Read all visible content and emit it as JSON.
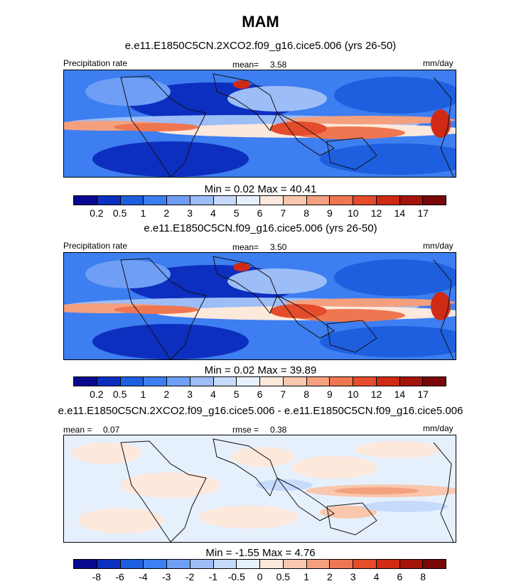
{
  "main_title": "MAM",
  "colors": {
    "scale": [
      "#08088f",
      "#0d2fbf",
      "#1e5fe0",
      "#3d7ef0",
      "#6e9ff5",
      "#9dbdf7",
      "#c6dafb",
      "#e6f0fd",
      "#fde8dc",
      "#f9c7ad",
      "#f4a07f",
      "#ee7752",
      "#e54c2c",
      "#cf2a14",
      "#a6130a",
      "#7a0707"
    ],
    "land_outline": "#111111"
  },
  "chart_data": [
    {
      "type": "heatmap",
      "title": "e.e11.E1850C5CN.2XCO2.f09_g16.cice5.006 (yrs 26-50)",
      "left_label": "Precipitation rate",
      "center_label": "mean=",
      "center_value": "3.58",
      "right_label": "mm/day",
      "min_label": "Min =",
      "min_value": "0.02",
      "max_label": "Max =",
      "max_value": "40.41",
      "colorbar_levels": [
        "0.2",
        "0.5",
        "1",
        "2",
        "3",
        "4",
        "5",
        "6",
        "7",
        "8",
        "9",
        "10",
        "12",
        "14",
        "17"
      ]
    },
    {
      "type": "heatmap",
      "title": "e.e11.E1850C5CN.f09_g16.cice5.006 (yrs 26-50)",
      "left_label": "Precipitation rate",
      "center_label": "mean=",
      "center_value": "3.50",
      "right_label": "mm/day",
      "min_label": "Min =",
      "min_value": "0.02",
      "max_label": "Max =",
      "max_value": "39.89",
      "colorbar_levels": [
        "0.2",
        "0.5",
        "1",
        "2",
        "3",
        "4",
        "5",
        "6",
        "7",
        "8",
        "9",
        "10",
        "12",
        "14",
        "17"
      ]
    },
    {
      "type": "heatmap",
      "title": "e.e11.E1850C5CN.2XCO2.f09_g16.cice5.006 - e.e11.E1850C5CN.f09_g16.cice5.006",
      "left_label": "mean =",
      "left_value": "0.07",
      "center_label": "rmse =",
      "center_value": "0.38",
      "right_label": "mm/day",
      "min_label": "Min =",
      "min_value": "-1.55",
      "max_label": "Max =",
      "max_value": "4.76",
      "colorbar_levels": [
        "-8",
        "-6",
        "-4",
        "-3",
        "-2",
        "-1",
        "-0.5",
        "0",
        "0.5",
        "1",
        "2",
        "3",
        "4",
        "6",
        "8"
      ]
    }
  ]
}
